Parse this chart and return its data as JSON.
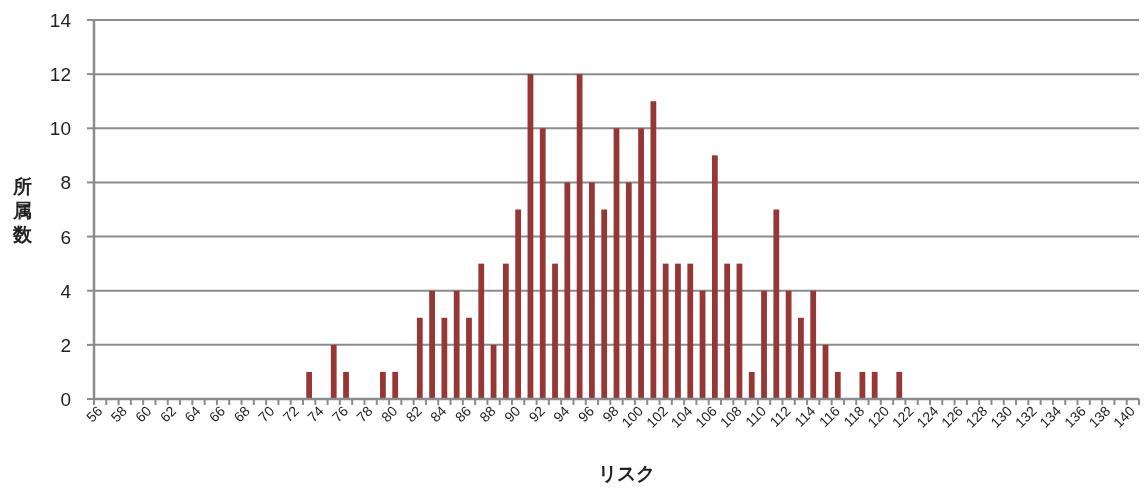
{
  "chart_data": {
    "type": "bar",
    "xlabel": "リスク",
    "ylabel": "所属数",
    "color": "#953735",
    "categories": [
      "56",
      null,
      "58",
      null,
      "60",
      null,
      "62",
      null,
      "64",
      null,
      "66",
      null,
      "68",
      null,
      "70",
      null,
      "72",
      null,
      "74",
      null,
      "76",
      null,
      "78",
      null,
      "80",
      null,
      "82",
      null,
      "84",
      null,
      "86",
      null,
      "88",
      null,
      "90",
      null,
      "92",
      null,
      "94",
      null,
      "96",
      null,
      "98",
      null,
      "100",
      null,
      "102",
      null,
      "104",
      null,
      "106",
      null,
      "108",
      null,
      "110",
      null,
      "112",
      null,
      "114",
      null,
      "116",
      null,
      "118",
      null,
      "120",
      null,
      "122",
      null,
      "124",
      null,
      "126",
      null,
      "128",
      null,
      "130",
      null,
      "132",
      null,
      "134",
      null,
      "136",
      null,
      "138",
      null,
      "140"
    ],
    "values": [
      0,
      0,
      0,
      0,
      0,
      0,
      0,
      0,
      0,
      0,
      0,
      0,
      0,
      0,
      0,
      0,
      0,
      1,
      0,
      2,
      1,
      0,
      0,
      1,
      1,
      0,
      3,
      4,
      3,
      4,
      3,
      5,
      2,
      5,
      7,
      12,
      10,
      5,
      8,
      12,
      8,
      7,
      10,
      8,
      10,
      11,
      5,
      5,
      5,
      4,
      9,
      5,
      5,
      1,
      4,
      7,
      4,
      3,
      4,
      2,
      1,
      0,
      1,
      1,
      0,
      1,
      0,
      0,
      0,
      0,
      0,
      0,
      0,
      0,
      0,
      0,
      0,
      0,
      0,
      0,
      0,
      0,
      0,
      0,
      0
    ],
    "ylim": [
      0,
      14
    ],
    "yticks": [
      0,
      2,
      4,
      6,
      8,
      10,
      12,
      14
    ],
    "grid": "y"
  }
}
